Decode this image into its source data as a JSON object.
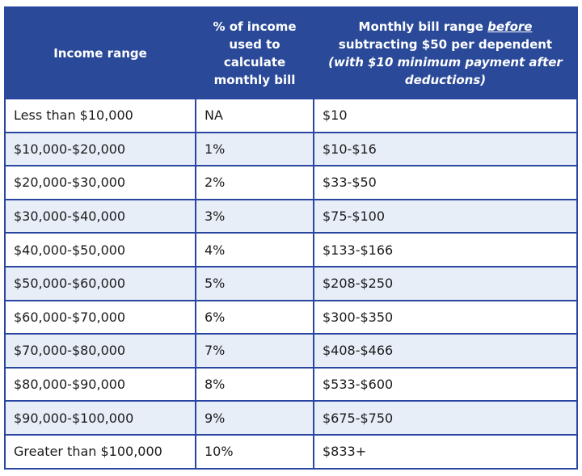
{
  "table": {
    "headers": {
      "income_range": "Income range",
      "percent": "% of income used to calculate monthly bill",
      "bill_line1": "Monthly bill range ",
      "bill_before": "before",
      "bill_line2": " subtracting $50 per dependent",
      "bill_paren": "(with $10 minimum payment after deductions)"
    },
    "rows": [
      {
        "income": "Less than $10,000",
        "percent": "NA",
        "bill": "$10"
      },
      {
        "income": "$10,000-$20,000",
        "percent": "1%",
        "bill": "$10-$16"
      },
      {
        "income": "$20,000-$30,000",
        "percent": "2%",
        "bill": "$33-$50"
      },
      {
        "income": "$30,000-$40,000",
        "percent": "3%",
        "bill": "$75-$100"
      },
      {
        "income": "$40,000-$50,000",
        "percent": "4%",
        "bill": "$133-$166"
      },
      {
        "income": "$50,000-$60,000",
        "percent": "5%",
        "bill": "$208-$250"
      },
      {
        "income": "$60,000-$70,000",
        "percent": "6%",
        "bill": "$300-$350"
      },
      {
        "income": "$70,000-$80,000",
        "percent": "7%",
        "bill": "$408-$466"
      },
      {
        "income": "$80,000-$90,000",
        "percent": "8%",
        "bill": "$533-$600"
      },
      {
        "income": "$90,000-$100,000",
        "percent": "9%",
        "bill": "$675-$750"
      },
      {
        "income": "Greater than $100,000",
        "percent": "10%",
        "bill": "$833+"
      }
    ]
  }
}
